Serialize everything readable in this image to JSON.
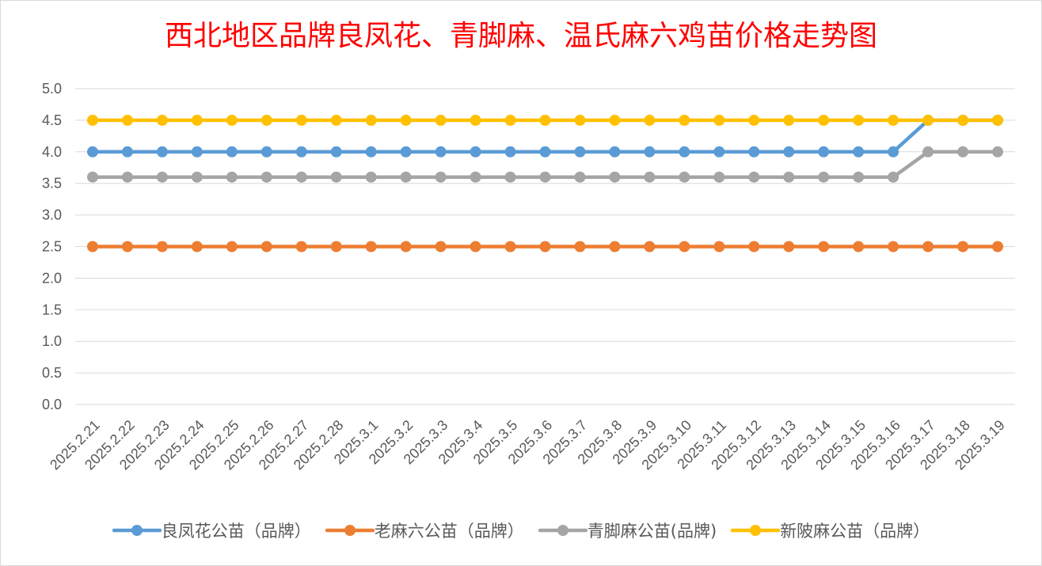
{
  "chart_data": {
    "type": "line",
    "title": "西北地区品牌良凤花、青脚麻、温氏麻六鸡苗价格走势图",
    "xlabel": "",
    "ylabel": "",
    "ylim": [
      0,
      5
    ],
    "y_ticks": [
      "0.0",
      "0.5",
      "1.0",
      "1.5",
      "2.0",
      "2.5",
      "3.0",
      "3.5",
      "4.0",
      "4.5",
      "5.0"
    ],
    "grid": true,
    "legend_position": "bottom",
    "categories": [
      "2025.2.21",
      "2025.2.22",
      "2025.2.23",
      "2025.2.24",
      "2025.2.25",
      "2025.2.26",
      "2025.2.27",
      "2025.2.28",
      "2025.3.1",
      "2025.3.2",
      "2025.3.3",
      "2025.3.4",
      "2025.3.5",
      "2025.3.6",
      "2025.3.7",
      "2025.3.8",
      "2025.3.9",
      "2025.3.10",
      "2025.3.11",
      "2025.3.12",
      "2025.3.13",
      "2025.3.14",
      "2025.3.15",
      "2025.3.16",
      "2025.3.17",
      "2025.3.18",
      "2025.3.19"
    ],
    "series": [
      {
        "name": "良凤花公苗（品牌）",
        "color": "#5b9bd5",
        "values": [
          4,
          4,
          4,
          4,
          4,
          4,
          4,
          4,
          4,
          4,
          4,
          4,
          4,
          4,
          4,
          4,
          4,
          4,
          4,
          4,
          4,
          4,
          4,
          4,
          4.5,
          4.5,
          4.5
        ]
      },
      {
        "name": "老麻六公苗（品牌）",
        "color": "#ed7d31",
        "values": [
          2.5,
          2.5,
          2.5,
          2.5,
          2.5,
          2.5,
          2.5,
          2.5,
          2.5,
          2.5,
          2.5,
          2.5,
          2.5,
          2.5,
          2.5,
          2.5,
          2.5,
          2.5,
          2.5,
          2.5,
          2.5,
          2.5,
          2.5,
          2.5,
          2.5,
          2.5,
          2.5
        ]
      },
      {
        "name": "青脚麻公苗(品牌)",
        "color": "#a5a5a5",
        "values": [
          3.6,
          3.6,
          3.6,
          3.6,
          3.6,
          3.6,
          3.6,
          3.6,
          3.6,
          3.6,
          3.6,
          3.6,
          3.6,
          3.6,
          3.6,
          3.6,
          3.6,
          3.6,
          3.6,
          3.6,
          3.6,
          3.6,
          3.6,
          3.6,
          4,
          4,
          4
        ]
      },
      {
        "name": "新陂麻公苗（品牌）",
        "color": "#ffc000",
        "values": [
          4.5,
          4.5,
          4.5,
          4.5,
          4.5,
          4.5,
          4.5,
          4.5,
          4.5,
          4.5,
          4.5,
          4.5,
          4.5,
          4.5,
          4.5,
          4.5,
          4.5,
          4.5,
          4.5,
          4.5,
          4.5,
          4.5,
          4.5,
          4.5,
          4.5,
          4.5,
          4.5
        ]
      }
    ]
  }
}
